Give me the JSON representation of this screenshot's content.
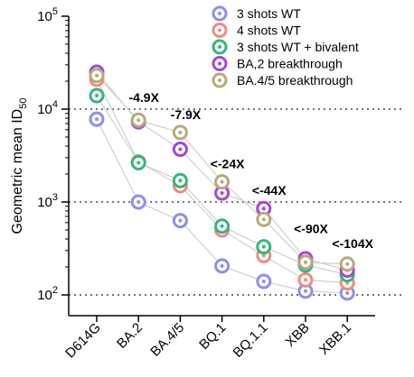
{
  "chart_data": {
    "type": "scatter",
    "title": "",
    "xlabel": "",
    "ylabel": {
      "main": "Geometric mean ID",
      "sub": "50"
    },
    "yscale": "log",
    "ylim": [
      80,
      100000
    ],
    "yticks": [
      {
        "value": 100,
        "base": "10",
        "exp": "2"
      },
      {
        "value": 1000,
        "base": "10",
        "exp": "3"
      },
      {
        "value": 10000,
        "base": "10",
        "exp": "4"
      },
      {
        "value": 100000,
        "base": "10",
        "exp": "5"
      }
    ],
    "dotted_gridlines": [
      100,
      1000,
      10000
    ],
    "categories": [
      "D614G",
      "BA.2",
      "BA.4/5",
      "BQ.1",
      "BQ.1.1",
      "XBB",
      "XBB.1"
    ],
    "legend_position": "top-right",
    "series": [
      {
        "name": "3 shots WT",
        "color": "#8b8ef0",
        "values": [
          7800,
          1000,
          630,
          205,
          140,
          110,
          105
        ]
      },
      {
        "name": "4 shots WT",
        "color": "#f08a7c",
        "values": [
          21000,
          2700,
          1500,
          500,
          265,
          145,
          135
        ]
      },
      {
        "name": "3 shots WT + bivalent",
        "color": "#2fb87a",
        "values": [
          14000,
          2650,
          1700,
          550,
          330,
          210,
          165
        ]
      },
      {
        "name": "BA,2 breakthrough",
        "color": "#a445d4",
        "values": [
          25000,
          7300,
          3700,
          1250,
          850,
          245,
          185
        ]
      },
      {
        "name": "BA.4/5 breakthrough",
        "color": "#b9a878",
        "values": [
          23000,
          7600,
          5600,
          1650,
          650,
          225,
          215
        ]
      }
    ],
    "annotations": [
      {
        "text": "-4.9X",
        "category": "BA.2",
        "y": 12000
      },
      {
        "text": "-7.9X",
        "category": "BA.4/5",
        "y": 7800
      },
      {
        "text": "<-24X",
        "category": "BQ.1",
        "y": 2300
      },
      {
        "text": "<-44X",
        "category": "BQ.1.1",
        "y": 1200
      },
      {
        "text": "<-90X",
        "category": "XBB",
        "y": 460
      },
      {
        "text": "<-104X",
        "category": "XBB.1",
        "y": 320
      }
    ]
  }
}
